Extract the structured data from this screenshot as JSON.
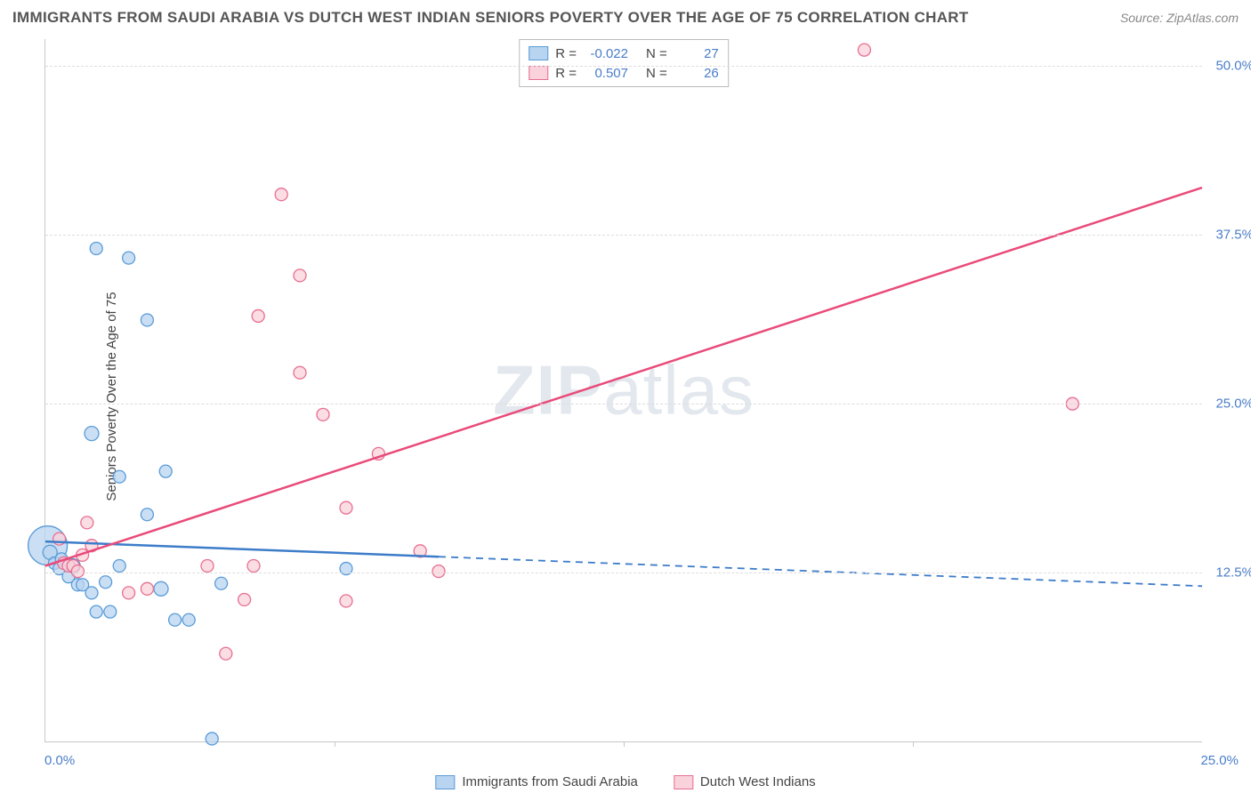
{
  "title": "IMMIGRANTS FROM SAUDI ARABIA VS DUTCH WEST INDIAN SENIORS POVERTY OVER THE AGE OF 75 CORRELATION CHART",
  "source": "Source: ZipAtlas.com",
  "y_axis_label": "Seniors Poverty Over the Age of 75",
  "watermark": "ZIPatlas",
  "chart": {
    "type": "scatter-with-regression",
    "xlim": [
      0,
      25
    ],
    "ylim": [
      0,
      52
    ],
    "x_ticks": [
      0,
      25
    ],
    "x_tick_labels": [
      "0.0%",
      "25.0%"
    ],
    "x_minor_ticks": [
      6.25,
      12.5,
      18.75
    ],
    "y_ticks": [
      12.5,
      25.0,
      37.5,
      50.0
    ],
    "y_tick_labels": [
      "12.5%",
      "25.0%",
      "37.5%",
      "50.0%"
    ],
    "background_color": "#ffffff",
    "grid_color": "#dddddd",
    "axis_color": "#c8c8c8",
    "tick_label_color": "#4a7ec8",
    "series": [
      {
        "name": "Immigrants from Saudi Arabia",
        "color_fill": "#b8d4f0",
        "color_stroke": "#5a9bd8",
        "line_color": "#3d7cc9",
        "marker_radius": 7,
        "R": "-0.022",
        "N": "27",
        "trend": {
          "x1": 0,
          "y1": 14.8,
          "x2": 25,
          "y2": 11.5,
          "solid_until_x": 8.5
        },
        "points": [
          {
            "x": 0.05,
            "y": 14.5,
            "r": 22
          },
          {
            "x": 0.1,
            "y": 14.0,
            "r": 8
          },
          {
            "x": 0.2,
            "y": 13.2,
            "r": 7
          },
          {
            "x": 0.3,
            "y": 12.8,
            "r": 7
          },
          {
            "x": 0.35,
            "y": 13.5,
            "r": 7
          },
          {
            "x": 0.5,
            "y": 12.2,
            "r": 7
          },
          {
            "x": 0.6,
            "y": 13.0,
            "r": 8
          },
          {
            "x": 0.7,
            "y": 11.6,
            "r": 7
          },
          {
            "x": 0.8,
            "y": 11.6,
            "r": 7
          },
          {
            "x": 1.0,
            "y": 11.0,
            "r": 7
          },
          {
            "x": 1.1,
            "y": 9.6,
            "r": 7
          },
          {
            "x": 1.3,
            "y": 11.8,
            "r": 7
          },
          {
            "x": 1.4,
            "y": 9.6,
            "r": 7
          },
          {
            "x": 1.6,
            "y": 13.0,
            "r": 7
          },
          {
            "x": 1.0,
            "y": 22.8,
            "r": 8
          },
          {
            "x": 1.6,
            "y": 19.6,
            "r": 7
          },
          {
            "x": 2.2,
            "y": 16.8,
            "r": 7
          },
          {
            "x": 2.5,
            "y": 11.3,
            "r": 8
          },
          {
            "x": 2.6,
            "y": 20.0,
            "r": 7
          },
          {
            "x": 2.8,
            "y": 9.0,
            "r": 7
          },
          {
            "x": 3.1,
            "y": 9.0,
            "r": 7
          },
          {
            "x": 2.2,
            "y": 31.2,
            "r": 7
          },
          {
            "x": 1.1,
            "y": 36.5,
            "r": 7
          },
          {
            "x": 1.8,
            "y": 35.8,
            "r": 7
          },
          {
            "x": 6.5,
            "y": 12.8,
            "r": 7
          },
          {
            "x": 3.6,
            "y": 0.2,
            "r": 7
          },
          {
            "x": 3.8,
            "y": 11.7,
            "r": 7
          }
        ]
      },
      {
        "name": "Dutch West Indians",
        "color_fill": "#f9d2db",
        "color_stroke": "#e86f91",
        "line_color": "#e94b7a",
        "marker_radius": 7,
        "R": "0.507",
        "N": "26",
        "trend": {
          "x1": 0,
          "y1": 13.0,
          "x2": 25,
          "y2": 41.0,
          "solid_until_x": 25
        },
        "points": [
          {
            "x": 0.3,
            "y": 15.0,
            "r": 7
          },
          {
            "x": 0.4,
            "y": 13.2,
            "r": 7
          },
          {
            "x": 0.5,
            "y": 13.0,
            "r": 7
          },
          {
            "x": 0.6,
            "y": 13.0,
            "r": 7
          },
          {
            "x": 0.7,
            "y": 12.6,
            "r": 7
          },
          {
            "x": 0.8,
            "y": 13.8,
            "r": 7
          },
          {
            "x": 0.9,
            "y": 16.2,
            "r": 7
          },
          {
            "x": 1.0,
            "y": 14.5,
            "r": 7
          },
          {
            "x": 1.8,
            "y": 11.0,
            "r": 7
          },
          {
            "x": 2.2,
            "y": 11.3,
            "r": 7
          },
          {
            "x": 3.5,
            "y": 13.0,
            "r": 7
          },
          {
            "x": 3.9,
            "y": 6.5,
            "r": 7
          },
          {
            "x": 4.3,
            "y": 10.5,
            "r": 7
          },
          {
            "x": 4.5,
            "y": 13.0,
            "r": 7
          },
          {
            "x": 5.5,
            "y": 34.5,
            "r": 7
          },
          {
            "x": 4.6,
            "y": 31.5,
            "r": 7
          },
          {
            "x": 5.1,
            "y": 40.5,
            "r": 7
          },
          {
            "x": 6.0,
            "y": 24.2,
            "r": 7
          },
          {
            "x": 5.5,
            "y": 27.3,
            "r": 7
          },
          {
            "x": 6.5,
            "y": 10.4,
            "r": 7
          },
          {
            "x": 7.2,
            "y": 21.3,
            "r": 7
          },
          {
            "x": 8.1,
            "y": 14.1,
            "r": 7
          },
          {
            "x": 8.5,
            "y": 12.6,
            "r": 7
          },
          {
            "x": 6.5,
            "y": 17.3,
            "r": 7
          },
          {
            "x": 17.7,
            "y": 51.2,
            "r": 7
          },
          {
            "x": 22.2,
            "y": 25.0,
            "r": 7
          }
        ]
      }
    ]
  },
  "legend_bottom": [
    {
      "label": "Immigrants from Saudi Arabia",
      "fill": "#b8d4f0",
      "stroke": "#5a9bd8"
    },
    {
      "label": "Dutch West Indians",
      "fill": "#f9d2db",
      "stroke": "#e86f91"
    }
  ]
}
